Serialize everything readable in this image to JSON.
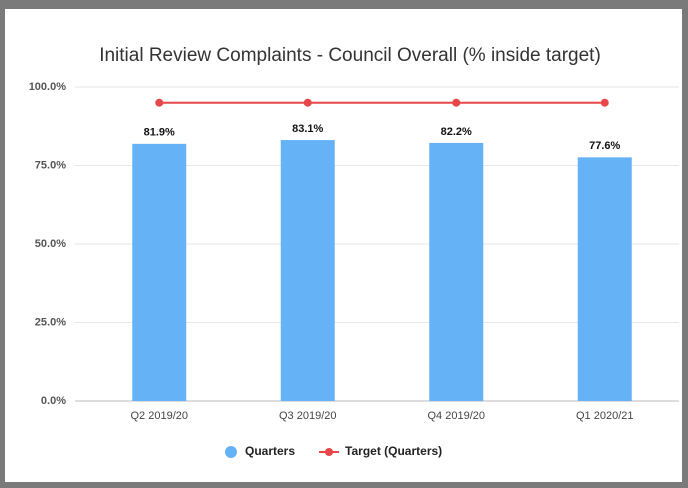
{
  "chart_data": {
    "type": "bar",
    "title": "Initial Review Complaints - Council Overall (% inside target)",
    "categories": [
      "Q2 2019/20",
      "Q3 2019/20",
      "Q4 2019/20",
      "Q1 2020/21"
    ],
    "series": [
      {
        "name": "Quarters",
        "type": "bar",
        "color": "#66b2f7",
        "values": [
          81.9,
          83.1,
          82.2,
          77.6
        ],
        "value_labels": [
          "81.9%",
          "83.1%",
          "82.2%",
          "77.6%"
        ]
      },
      {
        "name": "Target (Quarters)",
        "type": "line",
        "color": "#e8474a",
        "values": [
          95,
          95,
          95,
          95
        ]
      }
    ],
    "ylim": [
      0,
      100
    ],
    "yticks": [
      {
        "value": 0,
        "label": "0.0%"
      },
      {
        "value": 25,
        "label": "25.0%"
      },
      {
        "value": 50,
        "label": "50.0%"
      },
      {
        "value": 75,
        "label": "75.0%"
      },
      {
        "value": 100,
        "label": "100.0%"
      }
    ],
    "grid": true,
    "legend": "bottom"
  }
}
